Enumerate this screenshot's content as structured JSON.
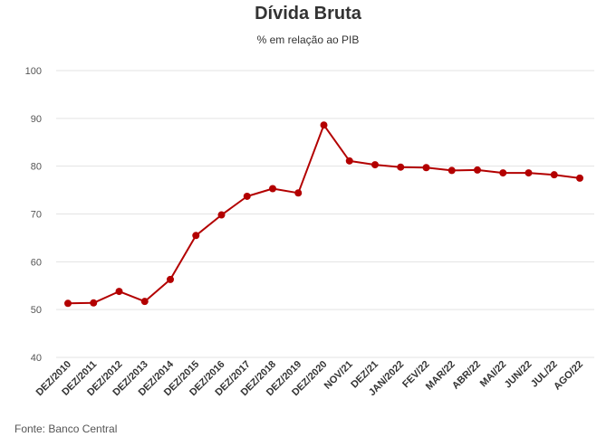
{
  "chart_data": {
    "type": "line",
    "title": "Dívida Bruta",
    "subtitle": "% em relação ao PIB",
    "source": "Fonte: Banco Central",
    "ylim": [
      40,
      100
    ],
    "yticks": [
      40,
      50,
      60,
      70,
      80,
      90,
      100
    ],
    "grid": true,
    "categories": [
      "DEZ/2010",
      "DEZ/2011",
      "DEZ/2012",
      "DEZ/2013",
      "DEZ/2014",
      "DEZ/2015",
      "DEZ/2016",
      "DEZ/2017",
      "DEZ/2018",
      "DEZ/2019",
      "DEZ/2020",
      "NOV/21",
      "DEZ/21",
      "JAN/2022",
      "FEV/22",
      "MAR/22",
      "ABR/22",
      "MAI/22",
      "JUN/22",
      "JUL/22",
      "AGO/22"
    ],
    "series": [
      {
        "color": "#b30000",
        "values": [
          51.3,
          51.4,
          53.8,
          51.7,
          56.3,
          65.5,
          69.8,
          73.7,
          75.3,
          74.4,
          88.6,
          81.1,
          80.3,
          79.8,
          79.7,
          79.1,
          79.2,
          78.6,
          78.6,
          78.2,
          77.5
        ]
      }
    ]
  }
}
